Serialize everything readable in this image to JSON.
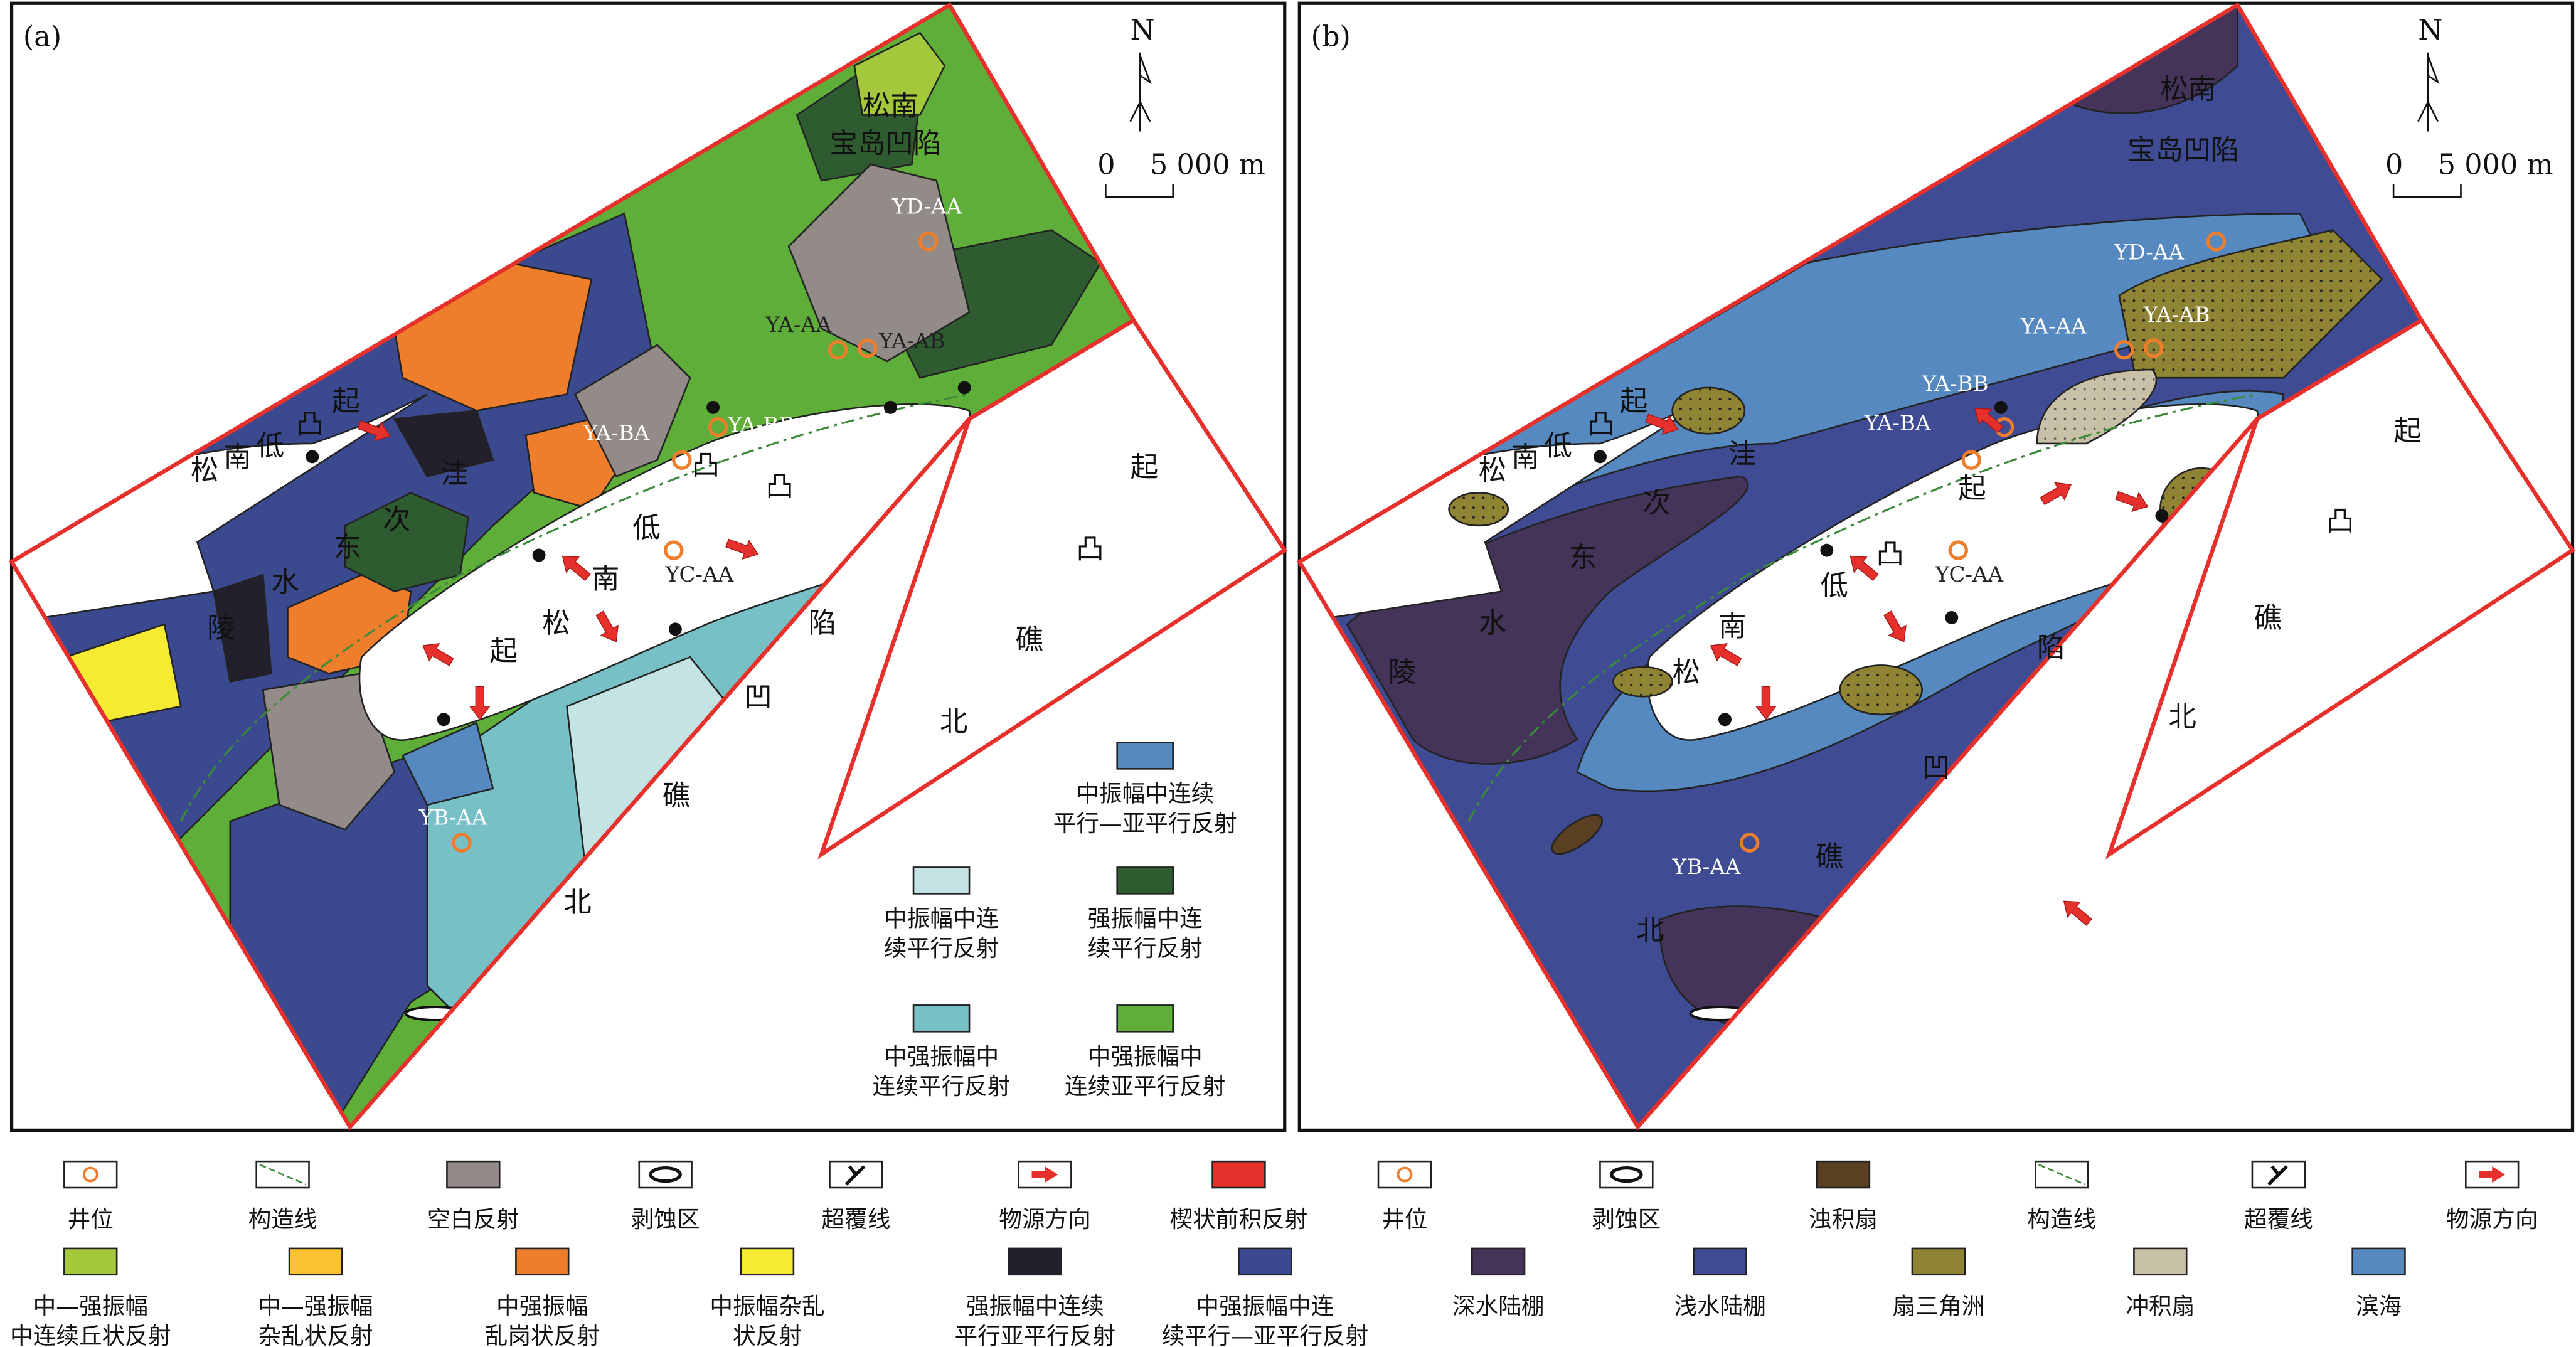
{
  "panels": {
    "a": {
      "label": "(a)",
      "north": "N",
      "scale": {
        "zero": "0",
        "length": "5 000 m"
      },
      "region_labels": [
        "松南",
        "宝岛凹陷",
        "起",
        "凸",
        "低",
        "南",
        "松",
        "洼",
        "次",
        "东",
        "水",
        "陵",
        "凸",
        "低",
        "南",
        "松",
        "起",
        "凸",
        "陷",
        "凹",
        "礁",
        "北",
        "起",
        "凸",
        "礁",
        "北"
      ],
      "wells": [
        "YD-AA",
        "YA-AA",
        "YA-AB",
        "YA-BA",
        "YA-BB",
        "YC-AA",
        "YB-AA"
      ],
      "inset_legend": [
        {
          "label": "中振幅中连续\n平行—亚平行反射",
          "color": "#5589c0"
        },
        {
          "label": "中振幅中连\n续平行反射",
          "color": "#c4e3e4"
        },
        {
          "label": "强振幅中连\n续平行反射",
          "color": "#2e5b30"
        },
        {
          "label": "中强振幅中\n连续平行反射",
          "color": "#76c0c6"
        },
        {
          "label": "中强振幅中\n连续亚平行反射",
          "color": "#5fae3a"
        }
      ]
    },
    "b": {
      "label": "(b)",
      "north": "N",
      "scale": {
        "zero": "0",
        "length": "5 000 m"
      },
      "region_labels": [
        "松南",
        "宝岛凹陷",
        "起",
        "凸",
        "低",
        "南",
        "松",
        "洼",
        "次",
        "东",
        "水",
        "陵",
        "起",
        "凸",
        "低",
        "南",
        "松",
        "陷",
        "凹",
        "礁",
        "北",
        "起",
        "凸",
        "礁",
        "北"
      ],
      "wells": [
        "YD-AA",
        "YA-AA",
        "YA-AB",
        "YA-BB",
        "YA-BA",
        "YC-AA",
        "YB-AA"
      ]
    }
  },
  "legend_a": [
    {
      "label": "井位",
      "icon": "well-circle-icon"
    },
    {
      "label": "构造线",
      "icon": "structure-line-icon"
    },
    {
      "label": "空白反射",
      "color": "#938b88"
    },
    {
      "label": "剥蚀区",
      "icon": "erosion-area-icon"
    },
    {
      "label": "超覆线",
      "icon": "onlap-line-icon"
    },
    {
      "label": "物源方向",
      "icon": "provenance-arrow-icon"
    },
    {
      "label": "楔状前积反射",
      "color": "#e6302b"
    },
    {
      "label": "中—强振幅\n中连续丘状反射",
      "color": "#a3c83b"
    },
    {
      "label": "中—强振幅\n杂乱状反射",
      "color": "#f9c22e"
    },
    {
      "label": "中强振幅\n乱岗状反射",
      "color": "#ee7d2c"
    },
    {
      "label": "中振幅杂乱\n状反射",
      "color": "#f6ea33"
    },
    {
      "label": "强振幅中连续\n平行亚平行反射",
      "color": "#231f2d"
    },
    {
      "label": "中强振幅中连\n续平行—亚平行反射",
      "color": "#3b4a8e"
    }
  ],
  "legend_b": [
    {
      "label": "井位",
      "icon": "well-circle-icon"
    },
    {
      "label": "剥蚀区",
      "icon": "erosion-area-icon"
    },
    {
      "label": "浊积扇",
      "color": "#5b3f22"
    },
    {
      "label": "构造线",
      "icon": "structure-line-icon"
    },
    {
      "label": "超覆线",
      "icon": "onlap-line-icon"
    },
    {
      "label": "物源方向",
      "icon": "provenance-arrow-icon"
    },
    {
      "label": "深水陆棚",
      "color": "#44345a"
    },
    {
      "label": "浅水陆棚",
      "color": "#3f4c94"
    },
    {
      "label": "扇三角洲",
      "color": "#8f8433"
    },
    {
      "label": "冲积扇",
      "color": "#c9c0a8"
    },
    {
      "label": "滨海",
      "color": "#5589c0"
    }
  ],
  "colors": {
    "boundary": "#e6302b",
    "well": "#ee7d2c",
    "structure_line": "#3a8a3a"
  }
}
